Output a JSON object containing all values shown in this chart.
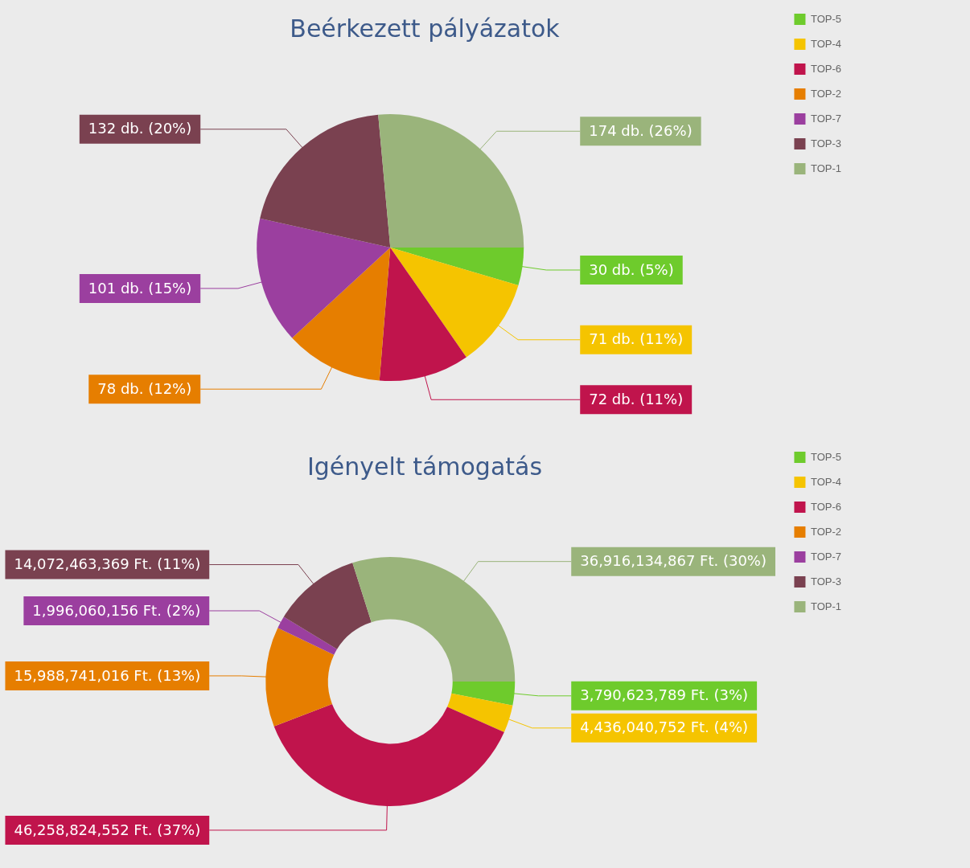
{
  "chart_data": [
    {
      "type": "pie",
      "title": "Beérkezett pályázatok",
      "categories": [
        "TOP-5",
        "TOP-4",
        "TOP-6",
        "TOP-2",
        "TOP-7",
        "TOP-3",
        "TOP-1"
      ],
      "values": [
        30,
        71,
        72,
        78,
        101,
        132,
        174
      ],
      "colors": [
        "#6ecb2c",
        "#f5c400",
        "#c0144c",
        "#e67e00",
        "#9b3f9f",
        "#7a4150",
        "#9ab47b"
      ],
      "value_labels": [
        "30 db. (5%)",
        "71 db. (11%)",
        "72 db. (11%)",
        "78 db. (12%)",
        "101 db. (15%)",
        "132 db. (20%)",
        "174 db. (26%)"
      ],
      "legend": "top right"
    },
    {
      "type": "donut",
      "title": "Igényelt támogatás",
      "categories": [
        "TOP-5",
        "TOP-4",
        "TOP-6",
        "TOP-2",
        "TOP-7",
        "TOP-3",
        "TOP-1"
      ],
      "values": [
        3790623789,
        4436040752,
        46258824552,
        15988741016,
        1996060156,
        14072463369,
        36916134867
      ],
      "colors": [
        "#6ecb2c",
        "#f5c400",
        "#c0144c",
        "#e67e00",
        "#9b3f9f",
        "#7a4150",
        "#9ab47b"
      ],
      "value_labels": [
        "3,790,623,789 Ft. (3%)",
        "4,436,040,752 Ft. (4%)",
        "46,258,824,552 Ft. (37%)",
        "15,988,741,016 Ft. (13%)",
        "1,996,060,156 Ft. (2%)",
        "14,072,463,369 Ft. (11%)",
        "36,916,134,867 Ft. (30%)"
      ],
      "legend": "top right"
    }
  ]
}
